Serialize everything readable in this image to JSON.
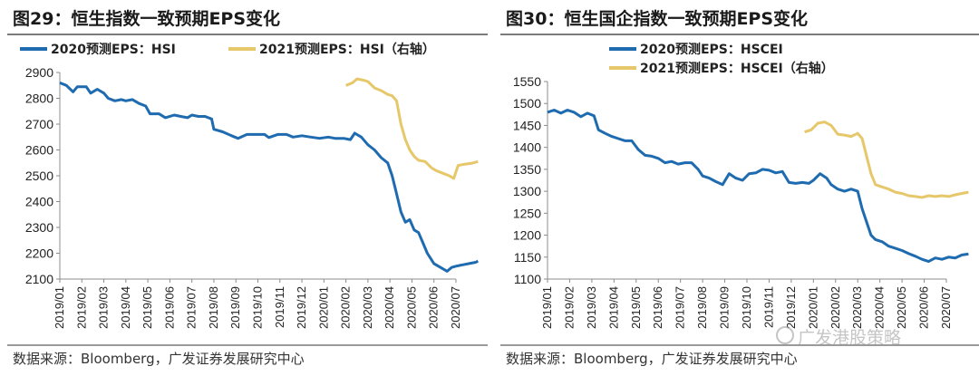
{
  "colors": {
    "blue": "#1f6bb0",
    "gold": "#e6c76a",
    "axis": "#8c8c8c"
  },
  "left": {
    "title": "图29：恒生指数一致预期EPS变化",
    "source": "数据来源：Bloomberg，广发证券发展研究中心",
    "chart_data": {
      "type": "line",
      "title": "图29：恒生指数一致预期EPS变化",
      "x_labels": [
        "2019/01",
        "2019/02",
        "2019/03",
        "2019/04",
        "2019/05",
        "2019/06",
        "2019/07",
        "2019/08",
        "2019/09",
        "2019/10",
        "2019/11",
        "2019/12",
        "2020/01",
        "2020/02",
        "2020/03",
        "2020/04",
        "2020/05",
        "2020/06",
        "2020/07"
      ],
      "ylim": [
        2100,
        2900
      ],
      "y_ticks": [
        2100,
        2200,
        2300,
        2400,
        2500,
        2600,
        2700,
        2800,
        2900
      ],
      "legend": "top",
      "series": [
        {
          "name": "2020预测EPS：HSI",
          "color": "#1f6bb0",
          "axis": "left",
          "points": [
            [
              0,
              2860
            ],
            [
              0.3,
              2850
            ],
            [
              0.6,
              2825
            ],
            [
              0.8,
              2845
            ],
            [
              1.2,
              2845
            ],
            [
              1.4,
              2820
            ],
            [
              1.7,
              2835
            ],
            [
              2.0,
              2820
            ],
            [
              2.2,
              2800
            ],
            [
              2.5,
              2790
            ],
            [
              2.8,
              2795
            ],
            [
              3.0,
              2790
            ],
            [
              3.3,
              2795
            ],
            [
              3.6,
              2780
            ],
            [
              3.9,
              2770
            ],
            [
              4.1,
              2740
            ],
            [
              4.5,
              2740
            ],
            [
              4.8,
              2725
            ],
            [
              5.2,
              2735
            ],
            [
              5.5,
              2730
            ],
            [
              5.8,
              2725
            ],
            [
              6.0,
              2735
            ],
            [
              6.3,
              2730
            ],
            [
              6.6,
              2730
            ],
            [
              6.9,
              2720
            ],
            [
              7.0,
              2680
            ],
            [
              7.4,
              2670
            ],
            [
              7.8,
              2655
            ],
            [
              8.1,
              2645
            ],
            [
              8.5,
              2660
            ],
            [
              8.9,
              2660
            ],
            [
              9.3,
              2660
            ],
            [
              9.5,
              2648
            ],
            [
              9.9,
              2660
            ],
            [
              10.3,
              2660
            ],
            [
              10.6,
              2650
            ],
            [
              11.0,
              2655
            ],
            [
              11.4,
              2650
            ],
            [
              11.8,
              2645
            ],
            [
              12.2,
              2650
            ],
            [
              12.5,
              2645
            ],
            [
              12.9,
              2645
            ],
            [
              13.2,
              2640
            ],
            [
              13.4,
              2665
            ],
            [
              13.7,
              2650
            ],
            [
              14.0,
              2620
            ],
            [
              14.3,
              2600
            ],
            [
              14.6,
              2570
            ],
            [
              14.9,
              2550
            ],
            [
              15.1,
              2500
            ],
            [
              15.3,
              2430
            ],
            [
              15.5,
              2360
            ],
            [
              15.7,
              2320
            ],
            [
              15.9,
              2330
            ],
            [
              16.1,
              2290
            ],
            [
              16.3,
              2280
            ],
            [
              16.5,
              2240
            ],
            [
              16.7,
              2200
            ],
            [
              17.0,
              2160
            ],
            [
              17.3,
              2145
            ],
            [
              17.6,
              2130
            ],
            [
              17.8,
              2145
            ],
            [
              18.0,
              2150
            ],
            [
              18.3,
              2155
            ],
            [
              18.6,
              2160
            ],
            [
              18.9,
              2165
            ],
            [
              19.0,
              2170
            ]
          ]
        },
        {
          "name": "2021预测EPS：HSI（右轴）",
          "color": "#e6c76a",
          "axis": "right",
          "points": [
            [
              13.0,
              2850
            ],
            [
              13.3,
              2860
            ],
            [
              13.5,
              2875
            ],
            [
              13.8,
              2870
            ],
            [
              14.0,
              2865
            ],
            [
              14.3,
              2840
            ],
            [
              14.6,
              2830
            ],
            [
              14.9,
              2815
            ],
            [
              15.1,
              2810
            ],
            [
              15.3,
              2790
            ],
            [
              15.5,
              2700
            ],
            [
              15.7,
              2640
            ],
            [
              15.9,
              2600
            ],
            [
              16.1,
              2575
            ],
            [
              16.3,
              2560
            ],
            [
              16.6,
              2555
            ],
            [
              16.9,
              2530
            ],
            [
              17.1,
              2520
            ],
            [
              17.4,
              2510
            ],
            [
              17.7,
              2500
            ],
            [
              17.9,
              2490
            ],
            [
              18.1,
              2540
            ],
            [
              18.4,
              2545
            ],
            [
              18.7,
              2548
            ],
            [
              19.0,
              2555
            ]
          ]
        }
      ]
    }
  },
  "right": {
    "title": "图30：恒生国企指数一致预期EPS变化",
    "source": "数据来源：Bloomberg，广发证券发展研究中心",
    "watermark": "广发港股策略",
    "chart_data": {
      "type": "line",
      "title": "图30：恒生国企指数一致预期EPS变化",
      "x_labels": [
        "2019/01",
        "2019/02",
        "2019/03",
        "2019/04",
        "2019/05",
        "2019/06",
        "2019/07",
        "2019/08",
        "2019/09",
        "2019/10",
        "2019/11",
        "2019/12",
        "2020/01",
        "2020/02",
        "2020/03",
        "2020/04",
        "2020/05",
        "2020/06",
        "2020/07"
      ],
      "ylim": [
        1100,
        1550
      ],
      "y_ticks": [
        1100,
        1150,
        1200,
        1250,
        1300,
        1350,
        1400,
        1450,
        1500,
        1550
      ],
      "legend": "top",
      "series": [
        {
          "name": "2020预测EPS：HSCEI",
          "color": "#1f6bb0",
          "axis": "left",
          "points": [
            [
              0,
              1480
            ],
            [
              0.3,
              1485
            ],
            [
              0.6,
              1478
            ],
            [
              0.9,
              1485
            ],
            [
              1.2,
              1480
            ],
            [
              1.5,
              1470
            ],
            [
              1.8,
              1478
            ],
            [
              2.1,
              1472
            ],
            [
              2.3,
              1440
            ],
            [
              2.6,
              1432
            ],
            [
              2.9,
              1425
            ],
            [
              3.2,
              1420
            ],
            [
              3.5,
              1415
            ],
            [
              3.8,
              1415
            ],
            [
              4.1,
              1395
            ],
            [
              4.4,
              1382
            ],
            [
              4.7,
              1380
            ],
            [
              5.0,
              1375
            ],
            [
              5.3,
              1365
            ],
            [
              5.6,
              1368
            ],
            [
              5.9,
              1362
            ],
            [
              6.2,
              1365
            ],
            [
              6.5,
              1365
            ],
            [
              6.8,
              1350
            ],
            [
              7.0,
              1335
            ],
            [
              7.3,
              1330
            ],
            [
              7.6,
              1322
            ],
            [
              7.9,
              1315
            ],
            [
              8.2,
              1340
            ],
            [
              8.5,
              1330
            ],
            [
              8.8,
              1325
            ],
            [
              9.1,
              1340
            ],
            [
              9.4,
              1342
            ],
            [
              9.7,
              1350
            ],
            [
              10.0,
              1348
            ],
            [
              10.3,
              1342
            ],
            [
              10.6,
              1345
            ],
            [
              10.9,
              1320
            ],
            [
              11.2,
              1318
            ],
            [
              11.5,
              1320
            ],
            [
              11.8,
              1318
            ],
            [
              12.0,
              1325
            ],
            [
              12.3,
              1340
            ],
            [
              12.6,
              1330
            ],
            [
              12.8,
              1315
            ],
            [
              13.1,
              1305
            ],
            [
              13.4,
              1300
            ],
            [
              13.7,
              1305
            ],
            [
              14.0,
              1300
            ],
            [
              14.2,
              1260
            ],
            [
              14.4,
              1230
            ],
            [
              14.6,
              1200
            ],
            [
              14.8,
              1190
            ],
            [
              15.1,
              1185
            ],
            [
              15.4,
              1175
            ],
            [
              15.7,
              1170
            ],
            [
              16.0,
              1165
            ],
            [
              16.3,
              1158
            ],
            [
              16.6,
              1152
            ],
            [
              16.9,
              1145
            ],
            [
              17.2,
              1140
            ],
            [
              17.5,
              1148
            ],
            [
              17.8,
              1145
            ],
            [
              18.1,
              1150
            ],
            [
              18.4,
              1148
            ],
            [
              18.7,
              1155
            ],
            [
              19.0,
              1157
            ]
          ]
        },
        {
          "name": "2021预测EPS：HSCEI（右轴）",
          "color": "#e6c76a",
          "axis": "right",
          "points": [
            [
              11.6,
              1435
            ],
            [
              11.9,
              1440
            ],
            [
              12.2,
              1455
            ],
            [
              12.5,
              1458
            ],
            [
              12.8,
              1450
            ],
            [
              13.1,
              1430
            ],
            [
              13.4,
              1428
            ],
            [
              13.7,
              1425
            ],
            [
              14.0,
              1432
            ],
            [
              14.2,
              1420
            ],
            [
              14.4,
              1380
            ],
            [
              14.6,
              1340
            ],
            [
              14.8,
              1315
            ],
            [
              15.1,
              1310
            ],
            [
              15.4,
              1305
            ],
            [
              15.7,
              1298
            ],
            [
              16.0,
              1295
            ],
            [
              16.3,
              1290
            ],
            [
              16.6,
              1288
            ],
            [
              16.9,
              1286
            ],
            [
              17.2,
              1290
            ],
            [
              17.5,
              1288
            ],
            [
              17.8,
              1290
            ],
            [
              18.1,
              1288
            ],
            [
              18.4,
              1292
            ],
            [
              18.7,
              1295
            ],
            [
              19.0,
              1298
            ]
          ]
        }
      ]
    }
  }
}
